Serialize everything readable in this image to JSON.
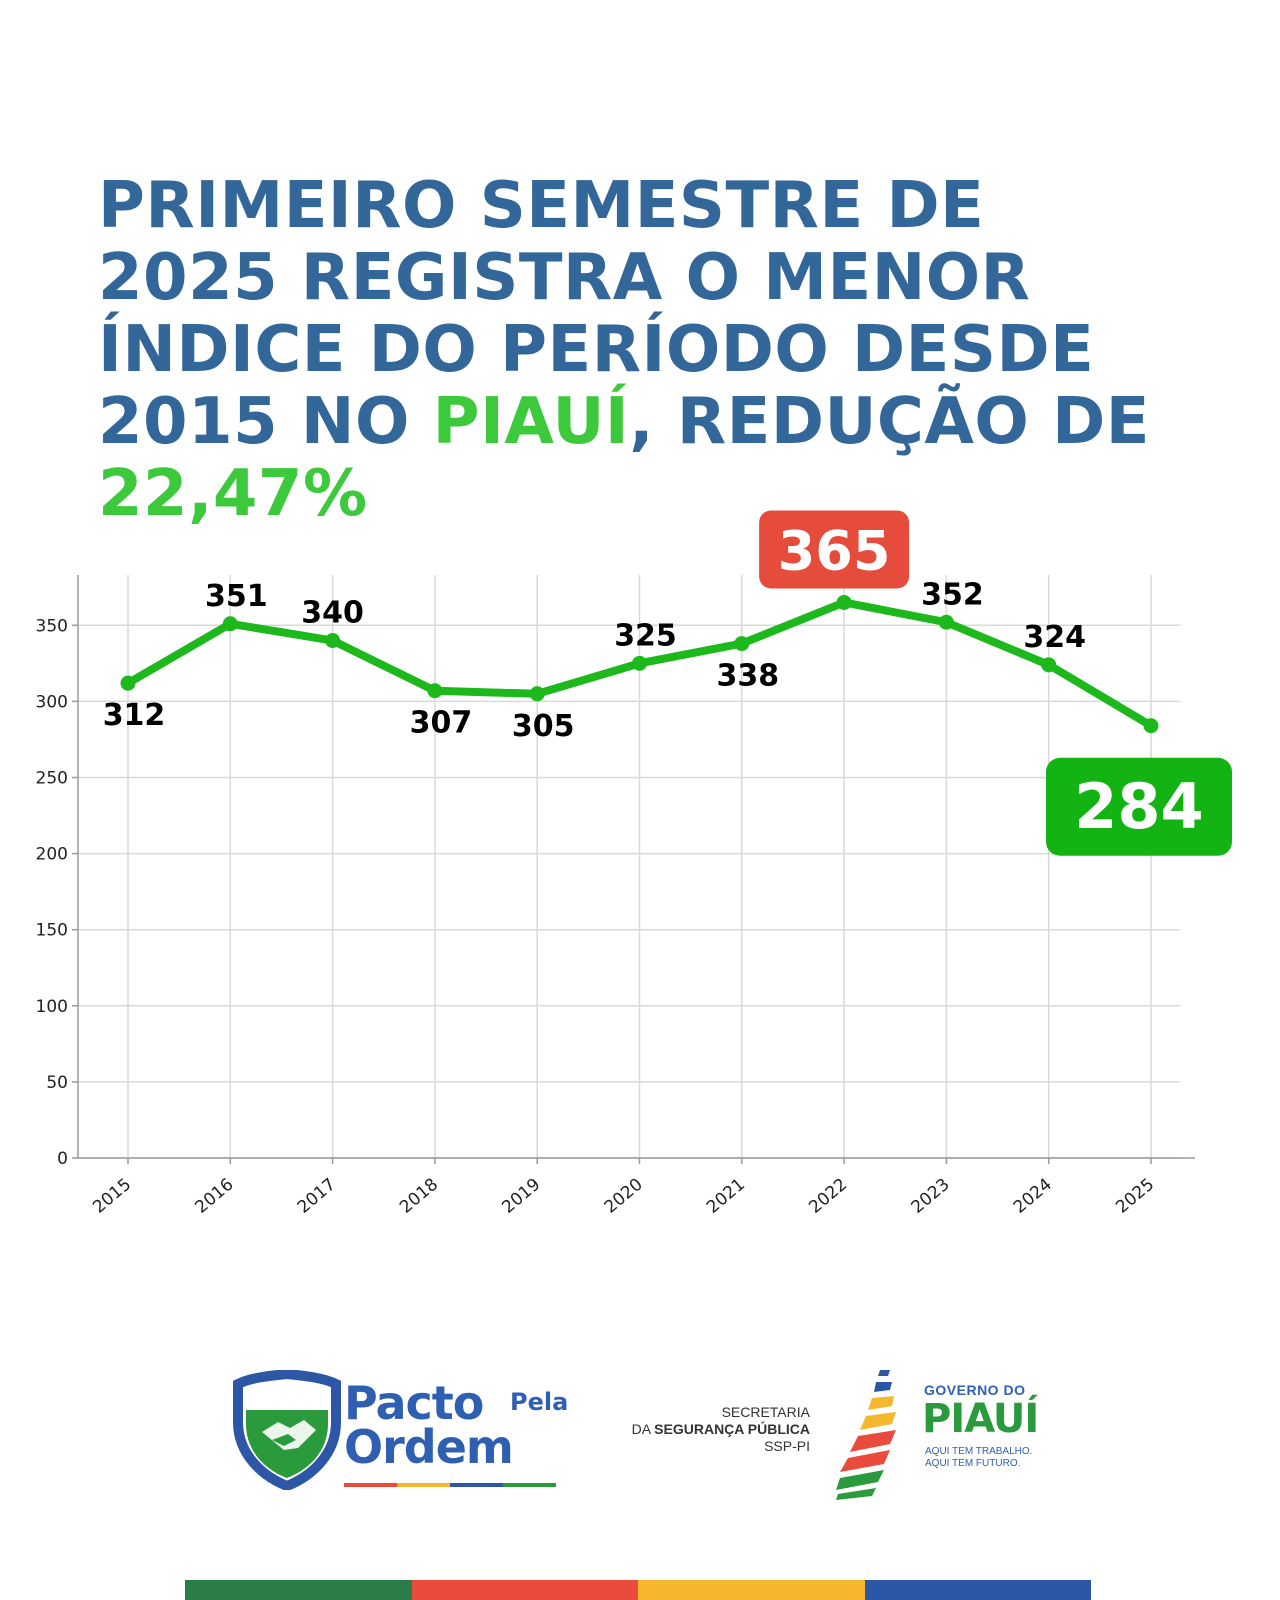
{
  "headline": {
    "line1": "PRIMEIRO SEMESTRE DE",
    "line2": "2025 REGISTRA O MENOR",
    "line3": "ÍNDICE DO PERÍODO DESDE",
    "line4_a": "2015 NO ",
    "line4_highlight": "PIAUÍ",
    "line4_b": ", REDUÇÃO DE",
    "line5_highlight": "22,47%"
  },
  "colors": {
    "title_blue": "#336699",
    "highlight_green": "#3cc93c",
    "line_green": "#1cb81c",
    "max_badge_red": "#e64c3c",
    "min_badge_green": "#12b312",
    "brand_green": "#2a7d46",
    "brand_red": "#e94c3d",
    "brand_yellow": "#f5b72e",
    "brand_blue": "#2d56a6"
  },
  "chart_data": {
    "type": "line",
    "title": "",
    "xlabel": "",
    "ylabel": "",
    "x": [
      "2015",
      "2016",
      "2017",
      "2018",
      "2019",
      "2020",
      "2021",
      "2022",
      "2023",
      "2024",
      "2025"
    ],
    "series": [
      {
        "values": [
          312,
          351,
          340,
          307,
          305,
          325,
          338,
          365,
          352,
          324,
          284
        ]
      }
    ],
    "data_labels": [
      "312",
      "351",
      "340",
      "307",
      "305",
      "325",
      "338",
      "365",
      "352",
      "324",
      "284"
    ],
    "ylim": [
      0,
      365
    ],
    "yticks": [
      0,
      50,
      100,
      150,
      200,
      250,
      300,
      350
    ],
    "ytick_labels": [
      "0",
      "50",
      "100",
      "150",
      "200",
      "250",
      "300",
      "350"
    ],
    "grid": true,
    "highlight_max": {
      "year": "2022",
      "value": 365,
      "color": "red"
    },
    "highlight_min": {
      "year": "2025",
      "value": 284,
      "color": "green"
    }
  },
  "footer": {
    "pacto_word1": "Pacto",
    "pacto_pela": "Pela",
    "pacto_word2": "Ordem",
    "ssp_line1": "SECRETARIA",
    "ssp_line2_prefix": "DA ",
    "ssp_line2_bold": "SEGURANÇA PÚBLICA",
    "ssp_line3": "SSP-PI",
    "gov_top": "GOVERNO DO",
    "gov_name": "PIAUÍ",
    "gov_slogan1": "AQUI TEM TRABALHO.",
    "gov_slogan2": "AQUI TEM FUTURO."
  }
}
